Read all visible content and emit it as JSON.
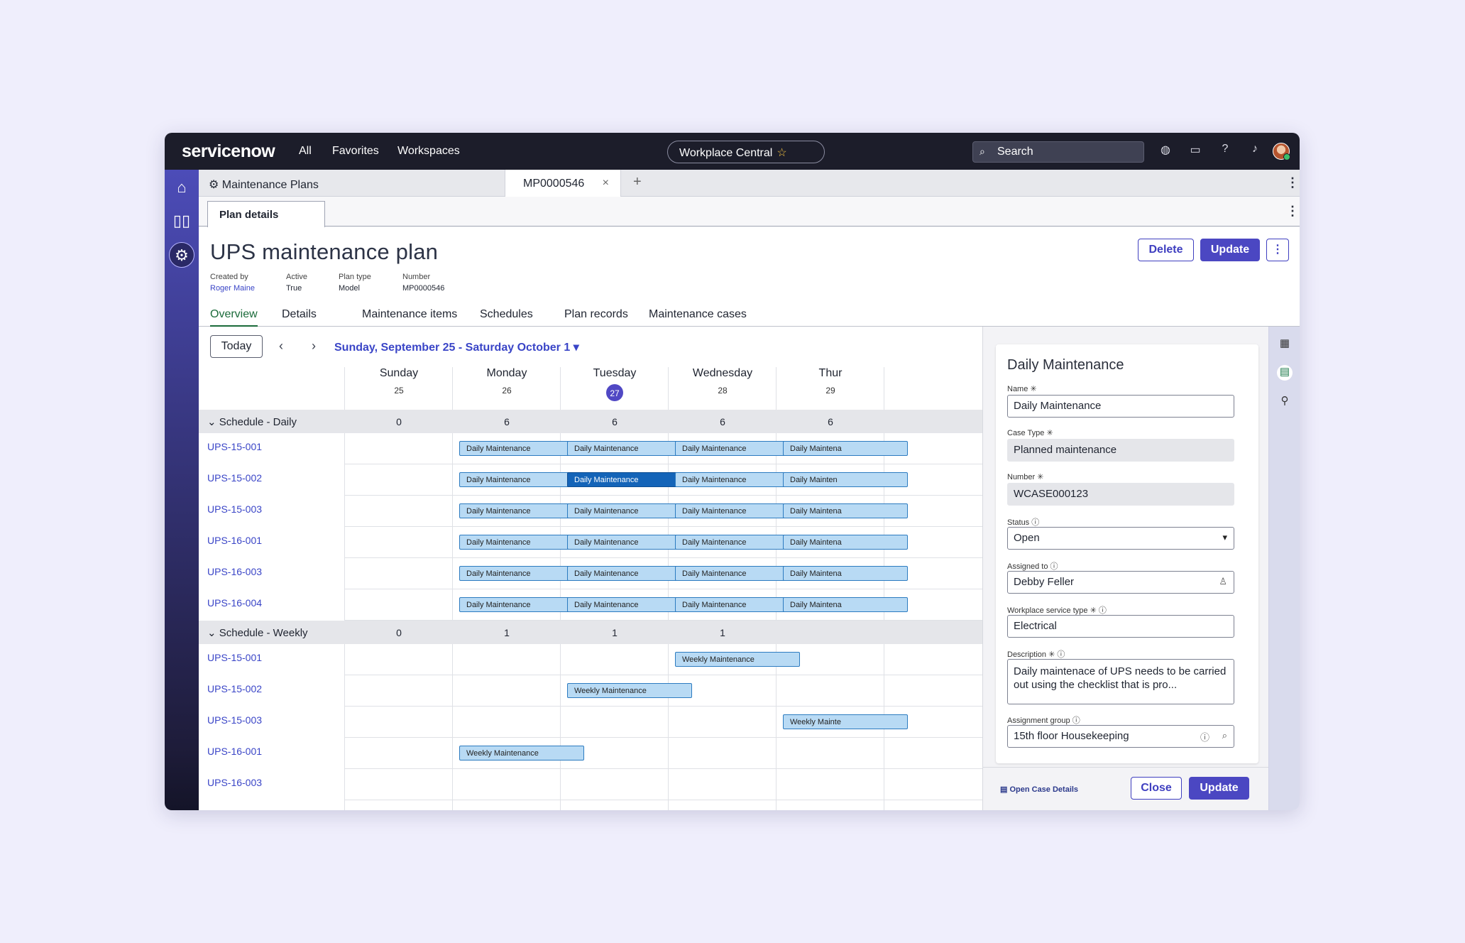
{
  "topbar": {
    "logo": "servicenow",
    "nav": [
      "All",
      "Favorites",
      "Workspaces"
    ],
    "workspace": "Workplace Central",
    "search_placeholder": "Search"
  },
  "tabs": {
    "list_tab": "Maintenance Plans",
    "record_tab": "MP0000546",
    "add": "+",
    "close": "×"
  },
  "subtab": "Plan details",
  "record": {
    "title": "UPS maintenance plan",
    "meta": [
      {
        "label": "Created by",
        "value": "Roger Maine"
      },
      {
        "label": "Active",
        "value": "True"
      },
      {
        "label": "Plan type",
        "value": "Model"
      },
      {
        "label": "Number",
        "value": "MP0000546"
      }
    ],
    "delete_label": "Delete",
    "update_label": "Update"
  },
  "record_tabs": [
    "Overview",
    "Details",
    "Maintenance items",
    "Schedules",
    "Plan records",
    "Maintenance cases"
  ],
  "calendar": {
    "today_label": "Today",
    "range": "Sunday, September 25 - Saturday October 1",
    "days": [
      {
        "name": "Sunday",
        "num": "25"
      },
      {
        "name": "Monday",
        "num": "26"
      },
      {
        "name": "Tuesday",
        "num": "27",
        "current": true
      },
      {
        "name": "Wednesday",
        "num": "28"
      },
      {
        "name": "Thur",
        "num": "29"
      }
    ],
    "groups": [
      {
        "label": "Schedule - Daily",
        "counts": [
          "0",
          "6",
          "6",
          "6",
          "6"
        ],
        "rows": [
          {
            "label": "UPS-15-001",
            "events": [
              "",
              "Daily Maintenance",
              "Daily Maintenance",
              "Daily Maintenance",
              "Daily Maintena"
            ]
          },
          {
            "label": "UPS-15-002",
            "events": [
              "",
              "Daily Maintenance",
              "Daily Maintenance",
              "Daily Maintenance",
              "Daily Mainten"
            ],
            "selected_col": 2
          },
          {
            "label": "UPS-15-003",
            "events": [
              "",
              "Daily Maintenance",
              "Daily Maintenance",
              "Daily Maintenance",
              "Daily Maintena"
            ]
          },
          {
            "label": "UPS-16-001",
            "events": [
              "",
              "Daily Maintenance",
              "Daily Maintenance",
              "Daily Maintenance",
              "Daily Maintena"
            ]
          },
          {
            "label": "UPS-16-003",
            "events": [
              "",
              "Daily Maintenance",
              "Daily Maintenance",
              "Daily Maintenance",
              "Daily Maintena"
            ]
          },
          {
            "label": "UPS-16-004",
            "events": [
              "",
              "Daily Maintenance",
              "Daily Maintenance",
              "Daily Maintenance",
              "Daily Maintena"
            ]
          }
        ]
      },
      {
        "label": "Schedule - Weekly",
        "counts": [
          "0",
          "1",
          "1",
          "1",
          ""
        ],
        "rows": [
          {
            "label": "UPS-15-001",
            "events": [
              "",
              "",
              "",
              "Weekly Maintenance",
              ""
            ]
          },
          {
            "label": "UPS-15-002",
            "events": [
              "",
              "",
              "Weekly Maintenance",
              "",
              ""
            ]
          },
          {
            "label": "UPS-15-003",
            "events": [
              "",
              "",
              "",
              "",
              "Weekly Mainte"
            ]
          },
          {
            "label": "UPS-16-001",
            "events": [
              "",
              "Weekly Maintenance",
              "",
              "",
              ""
            ]
          },
          {
            "label": "UPS-16-003",
            "events": [
              "",
              "",
              "",
              "",
              ""
            ]
          }
        ]
      }
    ]
  },
  "panel": {
    "title": "Daily Maintenance",
    "name_label": "Name",
    "name": "Daily Maintenance",
    "case_type_label": "Case Type",
    "case_type": "Planned maintenance",
    "number_label": "Number",
    "number": "WCASE000123",
    "status_label": "Status",
    "status": "Open",
    "assigned_label": "Assigned to",
    "assigned": "Debby Feller",
    "service_label": "Workplace service type",
    "service": "Electrical",
    "desc_label": "Description",
    "desc": "Daily maintenace of UPS needs to be carried out using the checklist that is pro...",
    "group_label": "Assignment group",
    "group": "15th floor Housekeeping",
    "open_case": "Open Case Details",
    "close_label": "Close",
    "update_label": "Update"
  },
  "colors": {
    "accent": "#4b47c2",
    "event_fill": "#b8daf4",
    "event_selected": "#1464b8",
    "active_tab": "#1b6b3a"
  }
}
